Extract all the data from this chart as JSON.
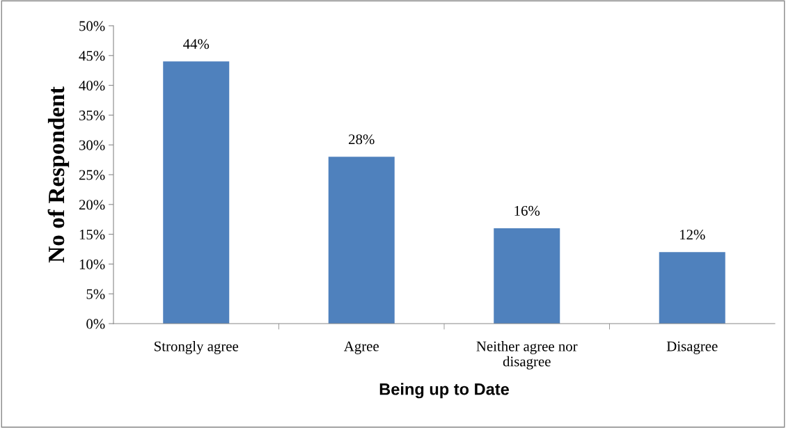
{
  "chart_data": {
    "type": "bar",
    "xlabel": "Being up to Date",
    "ylabel": "No of Respondent",
    "categories": [
      "Strongly agree",
      "Agree",
      "Neither agree nor\ndisagree",
      "Disagree"
    ],
    "values": [
      44,
      28,
      16,
      12
    ],
    "value_labels": [
      "44%",
      "28%",
      "16%",
      "12%"
    ],
    "color": "#4f81bd",
    "ylim": [
      0,
      50
    ],
    "yticks": [
      {
        "value": 0,
        "label": "0%"
      },
      {
        "value": 5,
        "label": "5%"
      },
      {
        "value": 10,
        "label": "10%"
      },
      {
        "value": 15,
        "label": "15%"
      },
      {
        "value": 20,
        "label": "20%"
      },
      {
        "value": 25,
        "label": "25%"
      },
      {
        "value": 30,
        "label": "30%"
      },
      {
        "value": 35,
        "label": "35%"
      },
      {
        "value": 40,
        "label": "40%"
      },
      {
        "value": 45,
        "label": "45%"
      },
      {
        "value": 50,
        "label": "50%"
      }
    ],
    "grid": false
  }
}
